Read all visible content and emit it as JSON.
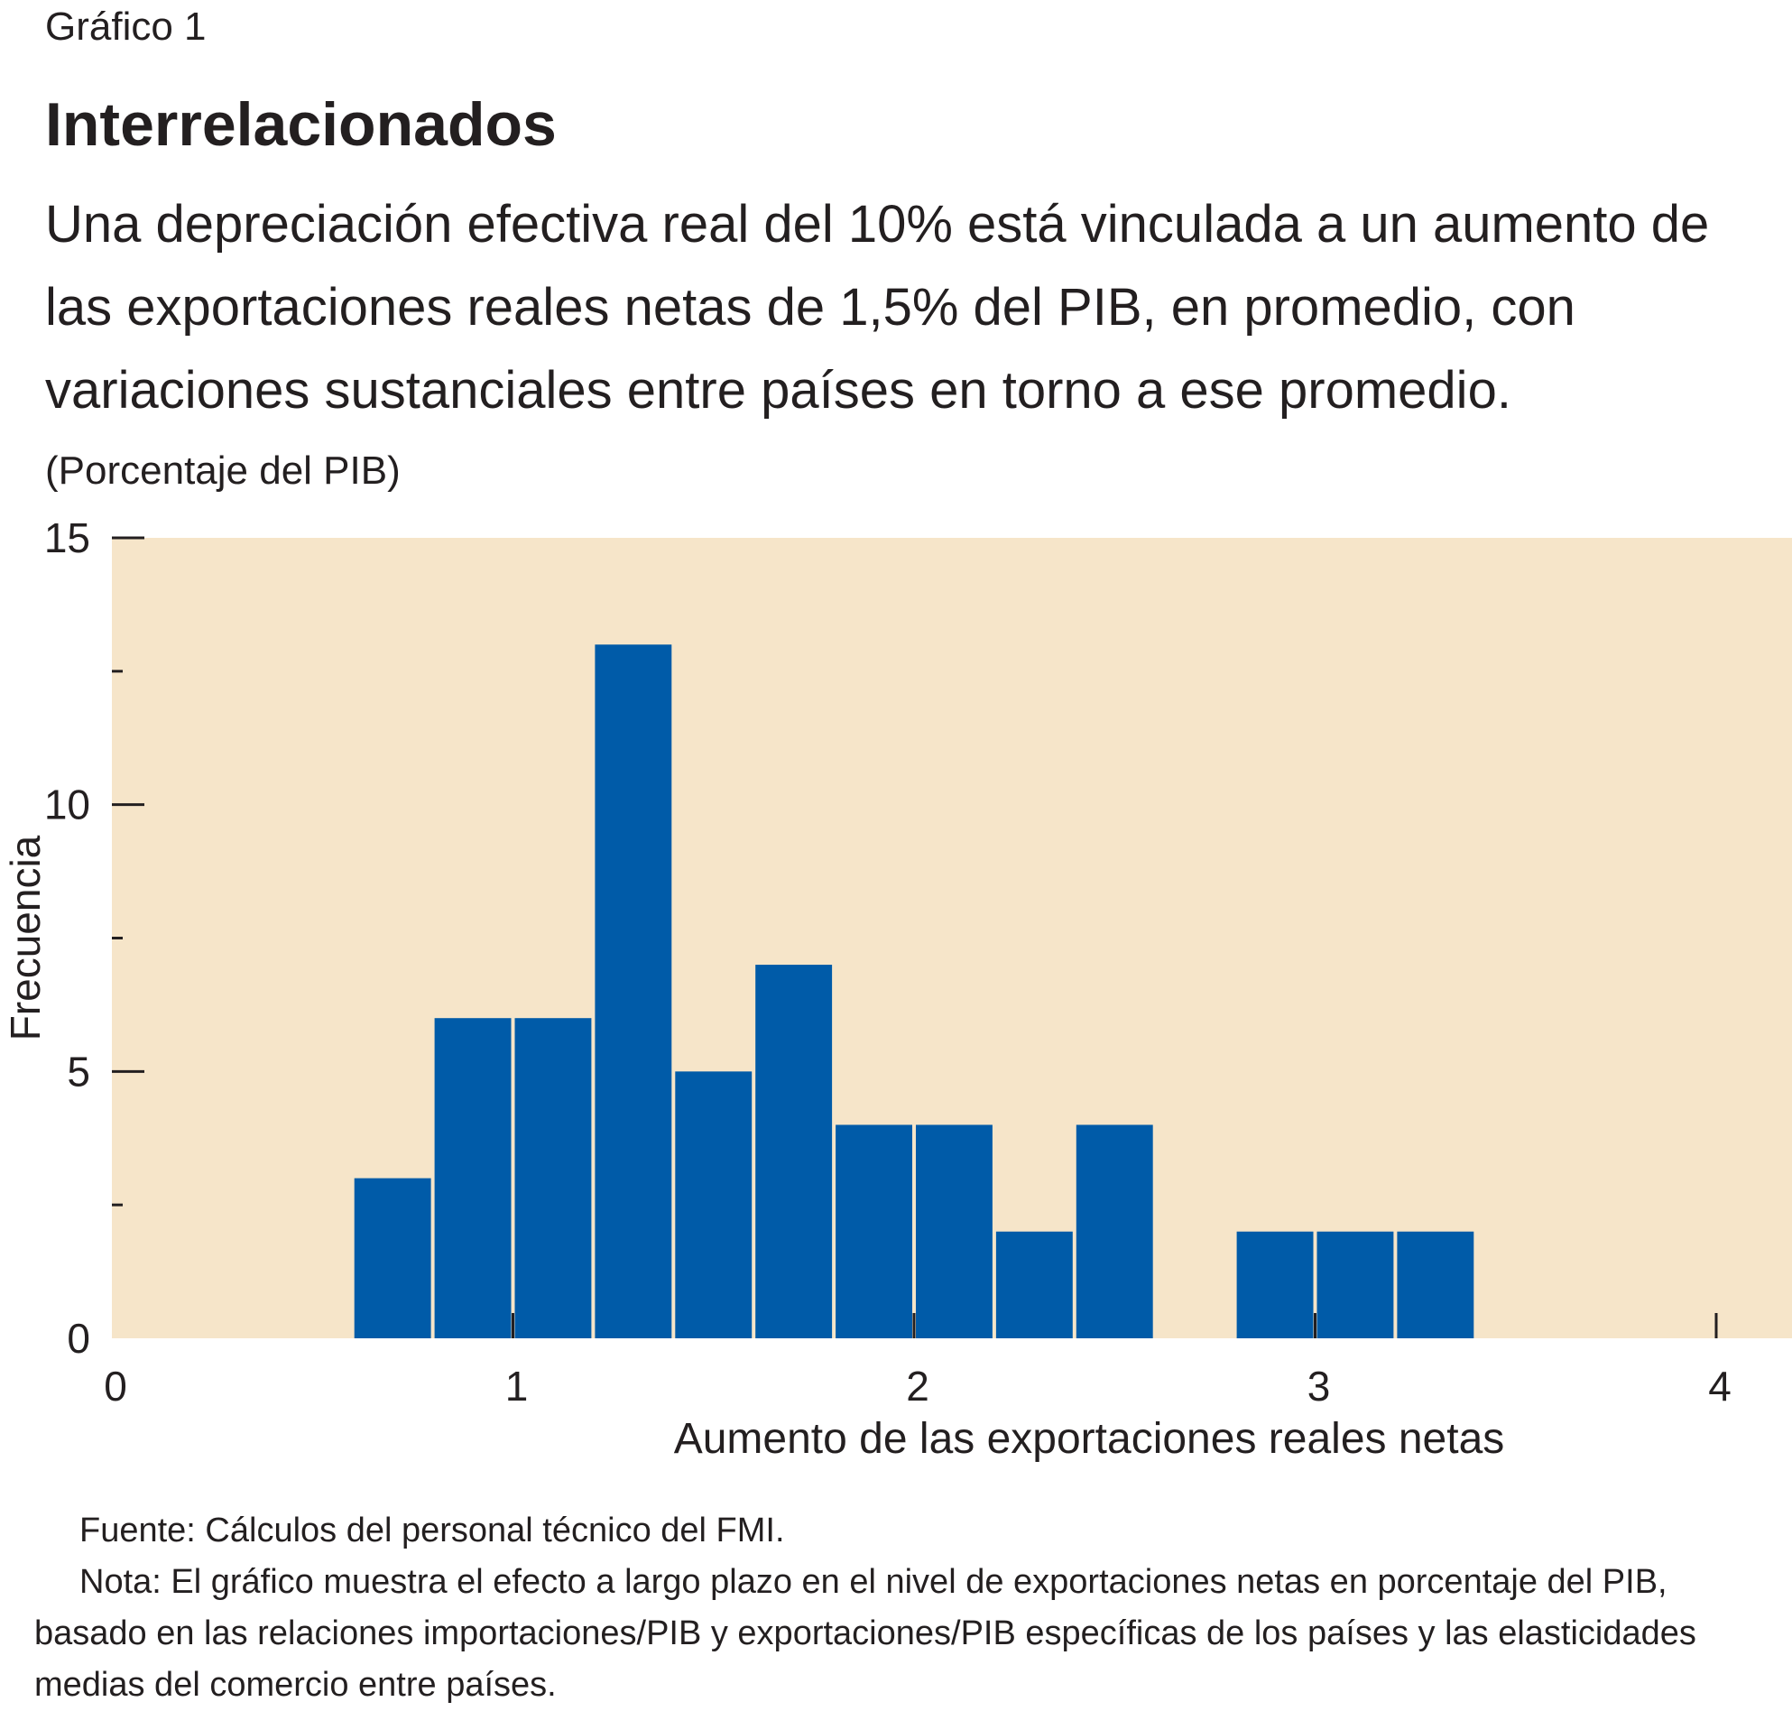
{
  "figure_label": "Gráfico 1",
  "chart_data": {
    "type": "bar",
    "title": "Interrelacionados",
    "subtitle": "Una depreciación efectiva real del 10% está vinculada a un aumento de las exportaciones reales netas de 1,5% del PIB, en promedio, con variaciones sustanciales entre países en torno a ese promedio.",
    "units": "(Porcentaje del PIB)",
    "xlabel": "Aumento de las exportaciones reales netas",
    "ylabel": "Frecuencia",
    "xlim": [
      0,
      4
    ],
    "ylim": [
      0,
      15
    ],
    "x_ticks": [
      0,
      1,
      2,
      3,
      4
    ],
    "y_ticks": [
      0,
      5,
      10,
      15
    ],
    "y_minor_ticks": [
      2.5,
      7.5,
      12.5
    ],
    "bin_width": 0.2,
    "bins": [
      {
        "x0": 0.6,
        "x1": 0.8,
        "value": 3
      },
      {
        "x0": 0.8,
        "x1": 1.0,
        "value": 6
      },
      {
        "x0": 1.0,
        "x1": 1.2,
        "value": 6
      },
      {
        "x0": 1.2,
        "x1": 1.4,
        "value": 13
      },
      {
        "x0": 1.4,
        "x1": 1.6,
        "value": 5
      },
      {
        "x0": 1.6,
        "x1": 1.8,
        "value": 7
      },
      {
        "x0": 1.8,
        "x1": 2.0,
        "value": 4
      },
      {
        "x0": 2.0,
        "x1": 2.2,
        "value": 4
      },
      {
        "x0": 2.2,
        "x1": 2.4,
        "value": 2
      },
      {
        "x0": 2.4,
        "x1": 2.6,
        "value": 4
      },
      {
        "x0": 2.8,
        "x1": 3.0,
        "value": 2
      },
      {
        "x0": 3.0,
        "x1": 3.2,
        "value": 2
      },
      {
        "x0": 3.2,
        "x1": 3.4,
        "value": 2
      }
    ],
    "bar_color": "#005ba8",
    "plot_background": "#f6e5c9",
    "grid": false,
    "legend": "none"
  },
  "notes": {
    "source": "Fuente: Cálculos del personal técnico del FMI.",
    "note": "Nota: El gráfico muestra el efecto a largo plazo en el nivel de exportaciones netas en porcentaje del PIB, basado en las relaciones importaciones/PIB y exportaciones/PIB específicas de los países y las elasticidades medias del comercio entre países."
  }
}
